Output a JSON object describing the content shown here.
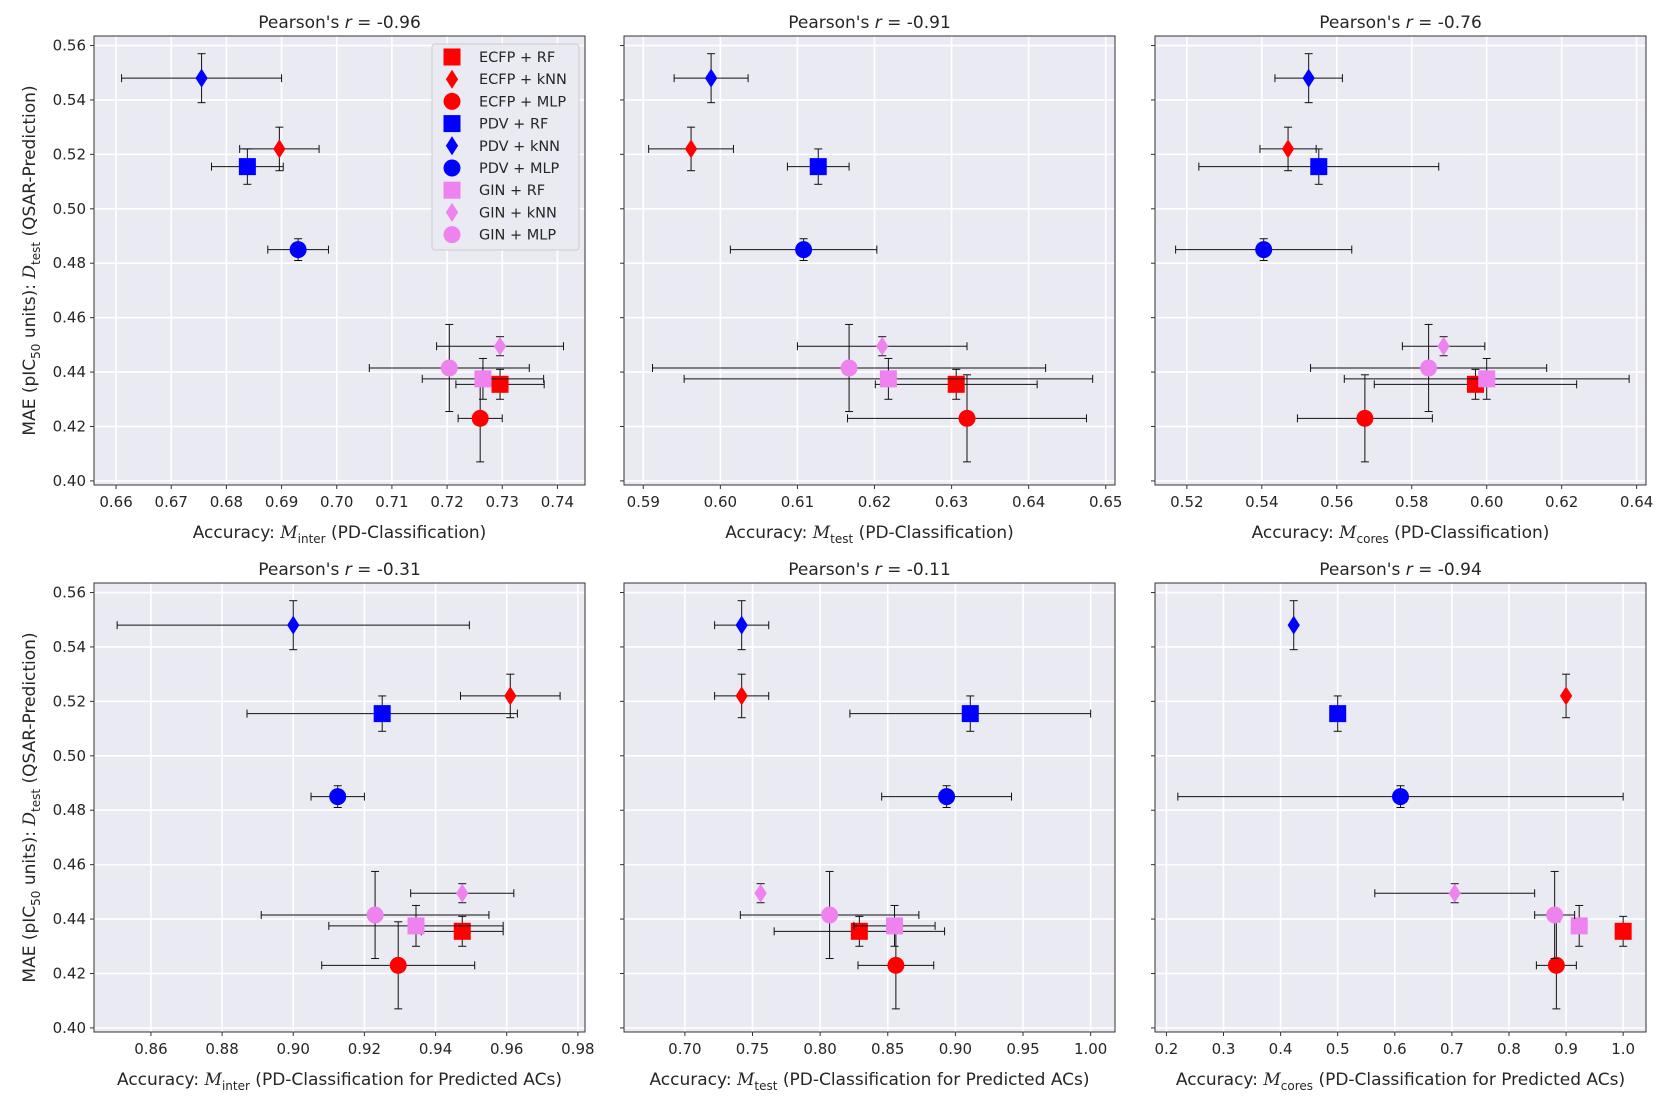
{
  "ylabel_parts": {
    "pre": "MAE (pIC",
    "sub50": "50",
    "mid": " units): ",
    "dtest": "D",
    "dsub": "test",
    "post": " (QSAR-Prediction)"
  },
  "legend": [
    {
      "label": "ECFP + RF",
      "color": "#ff0000",
      "marker": "square"
    },
    {
      "label": "ECFP + kNN",
      "color": "#ff0000",
      "marker": "diamond"
    },
    {
      "label": "ECFP + MLP",
      "color": "#ff0000",
      "marker": "circle"
    },
    {
      "label": "PDV + RF",
      "color": "#0000ff",
      "marker": "square"
    },
    {
      "label": "PDV + kNN",
      "color": "#0000ff",
      "marker": "diamond"
    },
    {
      "label": "PDV + MLP",
      "color": "#0000ff",
      "marker": "circle"
    },
    {
      "label": "GIN + RF",
      "color": "#ee82ee",
      "marker": "square"
    },
    {
      "label": "GIN + kNN",
      "color": "#ee82ee",
      "marker": "diamond"
    },
    {
      "label": "GIN + MLP",
      "color": "#ee82ee",
      "marker": "circle"
    }
  ],
  "mae": [
    0.4355,
    0.522,
    0.423,
    0.5155,
    0.548,
    0.485,
    0.4375,
    0.4495,
    0.4415
  ],
  "mae_err": [
    0.0055,
    0.008,
    0.016,
    0.0065,
    0.009,
    0.004,
    0.0075,
    0.0035,
    0.016
  ],
  "chart_data": [
    {
      "type": "scatter",
      "title_pre": "Pearson's ",
      "title_r": "r",
      "title_post": " = -0.96",
      "xlabel_pre": "Accuracy: ",
      "xlabel_sub": "inter",
      "xlabel_post": " (PD-Classification)",
      "xlim": [
        0.656,
        0.745
      ],
      "xticks": [
        0.66,
        0.67,
        0.68,
        0.69,
        0.7,
        0.71,
        0.72,
        0.73,
        0.74
      ],
      "xtick_dec": 2,
      "x": [
        0.7296,
        0.6896,
        0.726,
        0.6838,
        0.6755,
        0.693,
        0.7265,
        0.7296,
        0.7204
      ],
      "xerr": [
        0.008,
        0.0072,
        0.004,
        0.0065,
        0.0145,
        0.0055,
        0.011,
        0.0115,
        0.0145
      ]
    },
    {
      "type": "scatter",
      "title_pre": "Pearson's ",
      "title_r": "r",
      "title_post": " = -0.91",
      "xlabel_pre": "Accuracy: ",
      "xlabel_sub": "test",
      "xlabel_post": " (PD-Classification)",
      "xlim": [
        0.5875,
        0.6512
      ],
      "xticks": [
        0.59,
        0.6,
        0.61,
        0.62,
        0.63,
        0.64,
        0.65
      ],
      "xtick_dec": 2,
      "x": [
        0.6306,
        0.5962,
        0.632,
        0.6127,
        0.5988,
        0.6108,
        0.6218,
        0.621,
        0.6167
      ],
      "xerr": [
        0.0105,
        0.0055,
        0.0155,
        0.004,
        0.0048,
        0.0095,
        0.0265,
        0.011,
        0.0255
      ]
    },
    {
      "type": "scatter",
      "title_pre": "Pearson's ",
      "title_r": "r",
      "title_post": " = -0.76",
      "xlabel_pre": "Accuracy: ",
      "xlabel_sub": "cores",
      "xlabel_post": " (PD-Classification)",
      "xlim": [
        0.5115,
        0.6425
      ],
      "xticks": [
        0.52,
        0.54,
        0.56,
        0.58,
        0.6,
        0.62,
        0.64
      ],
      "xtick_dec": 2,
      "x": [
        0.597,
        0.547,
        0.5675,
        0.5552,
        0.5525,
        0.5405,
        0.6,
        0.5885,
        0.5845
      ],
      "xerr": [
        0.027,
        0.0075,
        0.018,
        0.032,
        0.009,
        0.0235,
        0.038,
        0.011,
        0.0315
      ]
    },
    {
      "type": "scatter",
      "title_pre": "Pearson's ",
      "title_r": "r",
      "title_post": " = -0.31",
      "xlabel_pre": "Accuracy: ",
      "xlabel_sub": "inter",
      "xlabel_post": " (PD-Classification for Predicted ACs)",
      "xlim": [
        0.844,
        0.982
      ],
      "xticks": [
        0.86,
        0.88,
        0.9,
        0.92,
        0.94,
        0.96,
        0.98
      ],
      "xtick_dec": 2,
      "x": [
        0.9475,
        0.961,
        0.9295,
        0.925,
        0.9,
        0.9125,
        0.9345,
        0.9475,
        0.923
      ],
      "xerr": [
        0.0115,
        0.014,
        0.0215,
        0.038,
        0.0495,
        0.0075,
        0.0245,
        0.0145,
        0.032
      ]
    },
    {
      "type": "scatter",
      "title_pre": "Pearson's ",
      "title_r": "r",
      "title_post": " = -0.11",
      "xlabel_pre": "Accuracy: ",
      "xlabel_sub": "test",
      "xlabel_post": " (PD-Classification for Predicted ACs)",
      "xlim": [
        0.655,
        1.018
      ],
      "xticks": [
        0.7,
        0.75,
        0.8,
        0.85,
        0.9,
        0.95,
        1.0
      ],
      "xtick_dec": 2,
      "x": [
        0.829,
        0.742,
        0.856,
        0.911,
        0.742,
        0.8935,
        0.855,
        0.756,
        0.807
      ],
      "xerr": [
        0.063,
        0.02,
        0.028,
        0.089,
        0.02,
        0.048,
        0.03,
        0.0,
        0.066
      ]
    },
    {
      "type": "scatter",
      "title_pre": "Pearson's ",
      "title_r": "r",
      "title_post": " = -0.94",
      "xlabel_pre": "Accuracy: ",
      "xlabel_sub": "cores",
      "xlabel_post": " (PD-Classification for Predicted ACs)",
      "xlim": [
        0.18,
        1.04
      ],
      "xticks": [
        0.2,
        0.3,
        0.4,
        0.5,
        0.6,
        0.7,
        0.8,
        0.9,
        1.0
      ],
      "xtick_dec": 1,
      "x": [
        1.0,
        0.9,
        0.883,
        0.5,
        0.423,
        0.61,
        0.923,
        0.705,
        0.88
      ],
      "xerr": [
        0.0,
        0.0,
        0.035,
        0.0,
        0.0,
        0.39,
        0.0,
        0.14,
        0.035
      ]
    }
  ],
  "ylim": [
    0.3985,
    0.5635
  ],
  "yticks": [
    0.4,
    0.42,
    0.44,
    0.46,
    0.48,
    0.5,
    0.52,
    0.54,
    0.56
  ]
}
